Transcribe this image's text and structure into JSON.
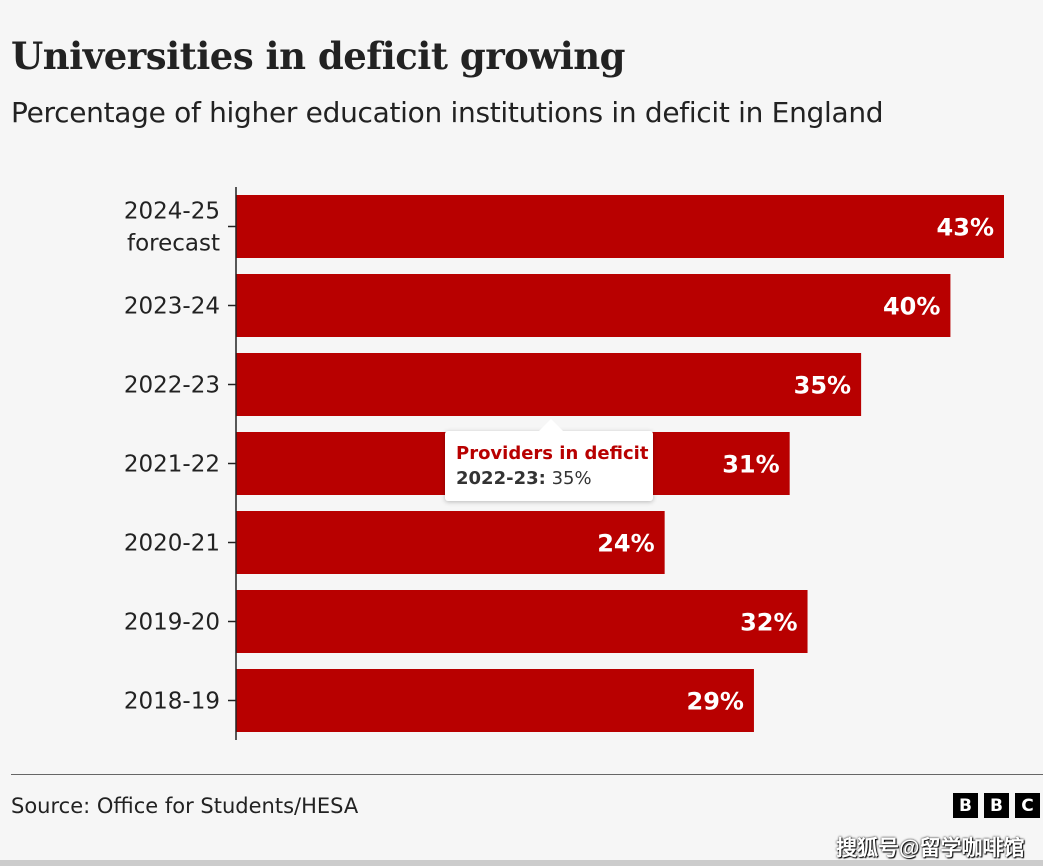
{
  "title": "Universities in deficit growing",
  "subtitle": "Percentage of higher education institutions in deficit in England",
  "chart_data": {
    "type": "bar",
    "orientation": "horizontal",
    "categories": [
      [
        "2024-25",
        "forecast"
      ],
      [
        "2023-24"
      ],
      [
        "2022-23"
      ],
      [
        "2021-22"
      ],
      [
        "2020-21"
      ],
      [
        "2019-20"
      ],
      [
        "2018-19"
      ]
    ],
    "values": [
      43,
      40,
      35,
      31,
      24,
      32,
      29
    ],
    "value_labels": [
      "43%",
      "40%",
      "35%",
      "31%",
      "24%",
      "32%",
      "29%"
    ],
    "unit": "%",
    "xlim": [
      0,
      43
    ],
    "bar_color": "#b80000",
    "grid": false
  },
  "tooltip": {
    "title": "Providers in deficit",
    "category": "2022-23:",
    "value": "35%"
  },
  "source": "Source: Office for Students/HESA",
  "logo": [
    "B",
    "B",
    "C"
  ],
  "watermark": "搜狐号@留学咖啡馆"
}
